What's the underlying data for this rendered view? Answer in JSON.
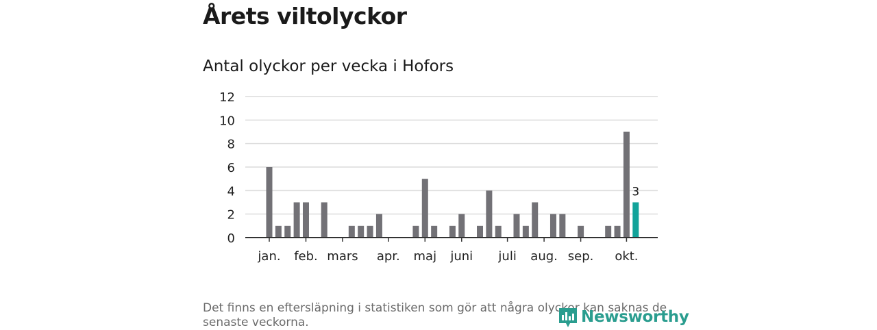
{
  "page": {
    "title": "Årets viltolyckor",
    "footnote": "Det finns en eftersläpning i statistiken som gör att några olyckor kan saknas de senaste veckorna.",
    "logo_text": "Newsworthy"
  },
  "colors": {
    "bar": "#727176",
    "highlight": "#12a39a",
    "grid": "#dcdcdc",
    "axis": "#333333",
    "logo": "#2a9d8f"
  },
  "chart_data": {
    "type": "bar",
    "title": "Antal olyckor per vecka i Hofors",
    "xlabel": "",
    "ylabel": "",
    "ylim": [
      0,
      12
    ],
    "yticks": [
      0,
      2,
      4,
      6,
      8,
      10,
      12
    ],
    "grid": true,
    "x_unit": "week",
    "weeks": [
      1,
      2,
      3,
      4,
      5,
      6,
      7,
      8,
      9,
      10,
      11,
      12,
      13,
      14,
      15,
      16,
      17,
      18,
      19,
      20,
      21,
      22,
      23,
      24,
      25,
      26,
      27,
      28,
      29,
      30,
      31,
      32,
      33,
      34,
      35,
      36,
      37,
      38,
      39,
      40,
      41
    ],
    "values": [
      6,
      1,
      1,
      3,
      3,
      0,
      3,
      0,
      0,
      1,
      1,
      1,
      2,
      0,
      0,
      0,
      1,
      5,
      1,
      0,
      1,
      2,
      0,
      1,
      4,
      1,
      0,
      2,
      1,
      3,
      0,
      2,
      2,
      0,
      1,
      0,
      0,
      1,
      1,
      9,
      3
    ],
    "highlight": {
      "week": 41,
      "value": 3,
      "label": "3"
    },
    "month_ticks": [
      {
        "label": "jan.",
        "week": 1
      },
      {
        "label": "feb.",
        "week": 5
      },
      {
        "label": "mars",
        "week": 9
      },
      {
        "label": "apr.",
        "week": 14
      },
      {
        "label": "maj",
        "week": 18
      },
      {
        "label": "juni",
        "week": 22
      },
      {
        "label": "juli",
        "week": 27
      },
      {
        "label": "aug.",
        "week": 31
      },
      {
        "label": "sep.",
        "week": 35
      },
      {
        "label": "okt.",
        "week": 40
      }
    ]
  }
}
